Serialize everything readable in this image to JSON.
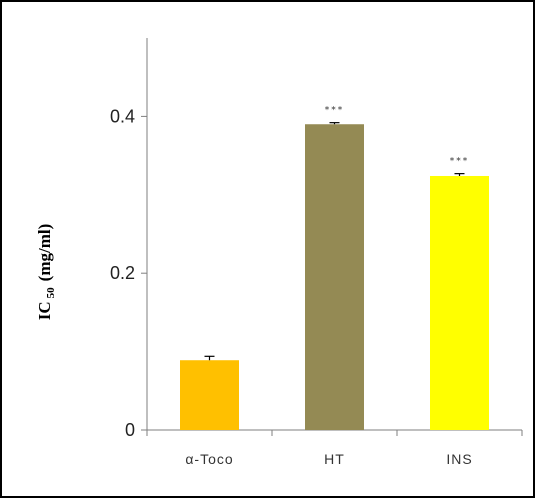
{
  "chart_data": {
    "type": "bar",
    "title": "",
    "xlabel": "",
    "ylabel": "IC",
    "ylabel_subscript": "50",
    "ylabel_unit": "(mg/ml)",
    "categories": [
      "α-Toco",
      "HT",
      "INS"
    ],
    "values": [
      0.089,
      0.39,
      0.324
    ],
    "errors": [
      0.005,
      0.002,
      0.003
    ],
    "significance": [
      "",
      "***",
      "***"
    ],
    "colors": [
      "#FFC000",
      "#948A54",
      "#FFFF00"
    ],
    "ylim": [
      0,
      0.5
    ],
    "yticks": [
      0,
      0.2,
      0.4
    ],
    "ytick_labels": [
      "0",
      "0.2",
      "0.4"
    ],
    "grid": false,
    "legend": "none"
  }
}
